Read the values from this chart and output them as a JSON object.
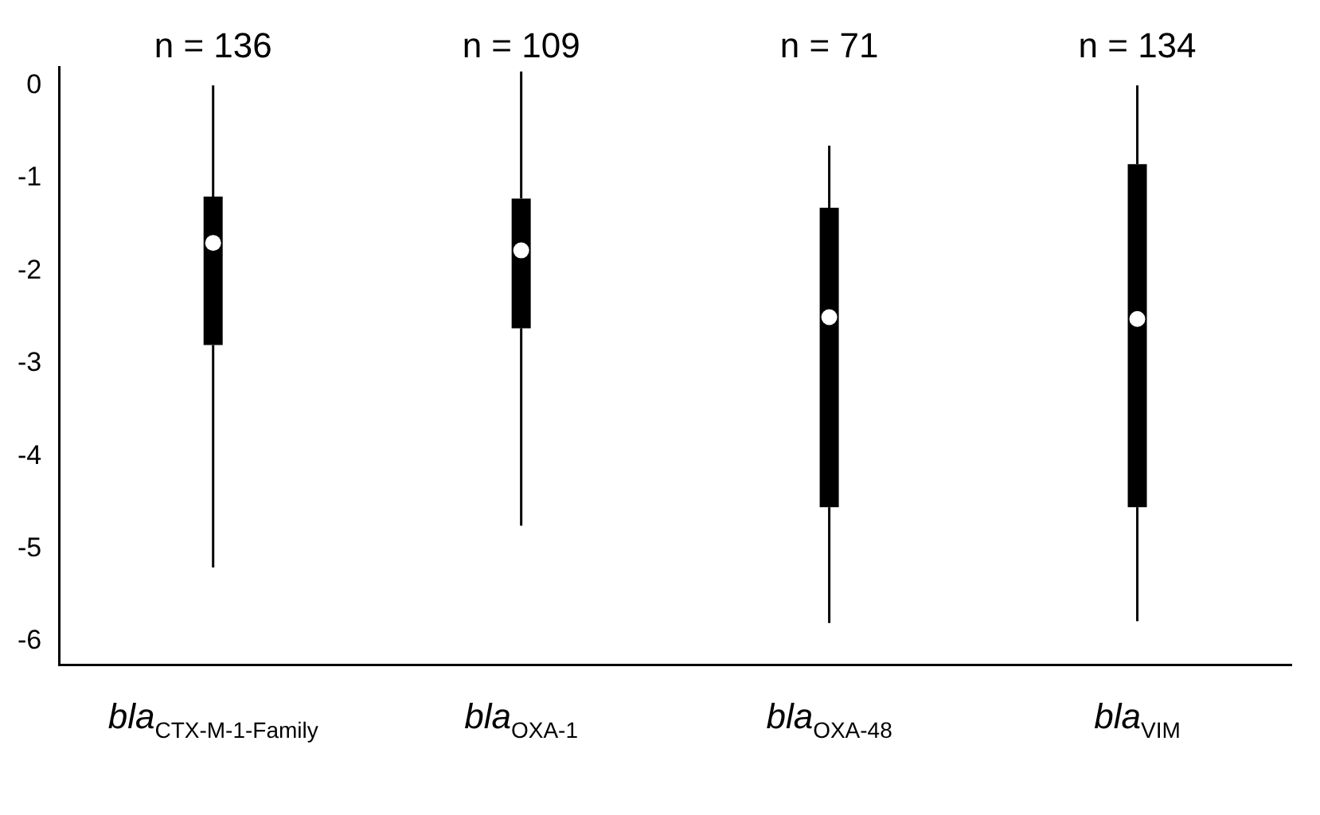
{
  "chart_data": {
    "type": "box",
    "categories": [
      "bla$_{CTX-M-1-Family}$",
      "bla$_{OXA-1}$",
      "bla$_{OXA-48}$",
      "bla$_{VIM}$"
    ],
    "boxes": [
      {
        "low": -5.2,
        "q1": -2.8,
        "median": -1.7,
        "q3": -1.2,
        "high": 0
      },
      {
        "low": -4.75,
        "q1": -2.62,
        "median": -1.78,
        "q3": -1.22,
        "high": 0.15
      },
      {
        "low": -5.8,
        "q1": -4.55,
        "median": -2.5,
        "q3": -1.32,
        "high": -0.65
      },
      {
        "low": -5.78,
        "q1": -4.55,
        "median": -2.52,
        "q3": -0.85,
        "high": 0
      }
    ],
    "color": "#000000",
    "ylim": [
      -6.25,
      0.2
    ],
    "yticks": [
      -6,
      -5,
      -4,
      -3,
      -2,
      -1,
      0
    ],
    "annotations": [
      "n = 136",
      "n = 109",
      "n = 71",
      "n = 134"
    ],
    "grid": false,
    "legend": false
  }
}
